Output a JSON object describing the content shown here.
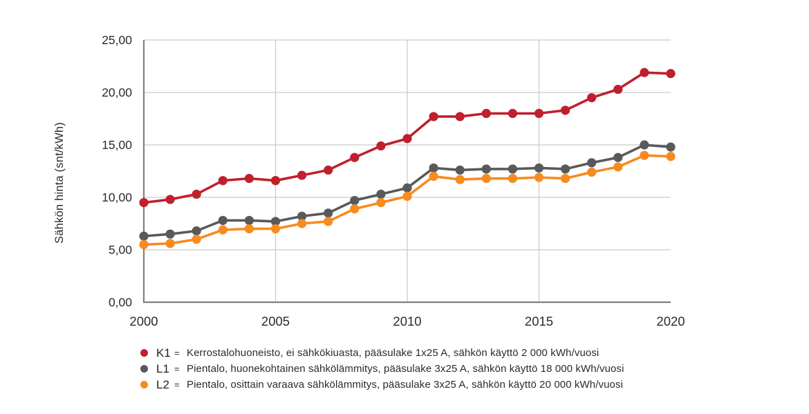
{
  "y_axis_title": "Sähkön hinta (snt/kWh)",
  "style": {
    "background": "#ffffff",
    "grid_color": "#cbcbcb",
    "axis_color": "#7f7f7f",
    "text_color": "#2b2b2b"
  },
  "legend": [
    {
      "key": "K1",
      "eq": "=",
      "color": "#c01f2e",
      "desc": "Kerrostalohuoneisto, ei sähkökiuasta, pääsulake 1x25 A, sähkön käyttö 2 000 kWh/vuosi"
    },
    {
      "key": "L1",
      "eq": "=",
      "color": "#58595b",
      "desc": "Pientalo, huonekohtainen sähkölämmitys, pääsulake 3x25 A, sähkön käyttö 18 000 kWh/vuosi"
    },
    {
      "key": "L2",
      "eq": "=",
      "color": "#f68b1f",
      "desc": "Pientalo, osittain varaava sähkölämmitys, pääsulake 3x25 A, sähkön käyttö 20 000 kWh/vuosi"
    }
  ],
  "chart_data": {
    "type": "line",
    "title": "",
    "xlabel": "",
    "ylabel": "Sähkön hinta (snt/kWh)",
    "x": [
      2000,
      2001,
      2002,
      2003,
      2004,
      2005,
      2006,
      2007,
      2008,
      2009,
      2010,
      2011,
      2012,
      2013,
      2014,
      2015,
      2016,
      2017,
      2018,
      2019,
      2020
    ],
    "series": [
      {
        "name": "K1",
        "color": "#c01f2e",
        "values": [
          9.5,
          9.8,
          10.3,
          11.6,
          11.8,
          11.6,
          12.1,
          12.6,
          13.8,
          14.9,
          15.6,
          17.7,
          17.7,
          18.0,
          18.0,
          18.0,
          18.3,
          19.5,
          20.3,
          21.9,
          21.8
        ]
      },
      {
        "name": "L1",
        "color": "#58595b",
        "values": [
          6.3,
          6.5,
          6.8,
          7.8,
          7.8,
          7.7,
          8.2,
          8.5,
          9.7,
          10.3,
          10.9,
          12.8,
          12.6,
          12.7,
          12.7,
          12.8,
          12.7,
          13.3,
          13.8,
          15.0,
          14.8
        ]
      },
      {
        "name": "L2",
        "color": "#f68b1f",
        "values": [
          5.5,
          5.6,
          6.0,
          6.9,
          7.0,
          7.0,
          7.5,
          7.7,
          8.9,
          9.5,
          10.1,
          12.0,
          11.7,
          11.8,
          11.8,
          11.9,
          11.8,
          12.4,
          12.9,
          14.0,
          13.9
        ]
      }
    ],
    "ylim": [
      0,
      25
    ],
    "xlim": [
      2000,
      2020
    ],
    "y_ticks": [
      {
        "value": 0,
        "label": "0,00"
      },
      {
        "value": 5,
        "label": "5,00"
      },
      {
        "value": 10,
        "label": "10,00"
      },
      {
        "value": 15,
        "label": "15,00"
      },
      {
        "value": 20,
        "label": "20,00"
      },
      {
        "value": 25,
        "label": "25,00"
      }
    ],
    "x_ticks": [
      {
        "value": 2000,
        "label": "2000"
      },
      {
        "value": 2005,
        "label": "2005"
      },
      {
        "value": 2010,
        "label": "2010"
      },
      {
        "value": 2015,
        "label": "2015"
      },
      {
        "value": 2020,
        "label": "2020"
      }
    ],
    "grid": {
      "horizontal": true,
      "vertical_years": [
        2005,
        2010,
        2015
      ]
    },
    "legend_position": "bottom-left"
  }
}
